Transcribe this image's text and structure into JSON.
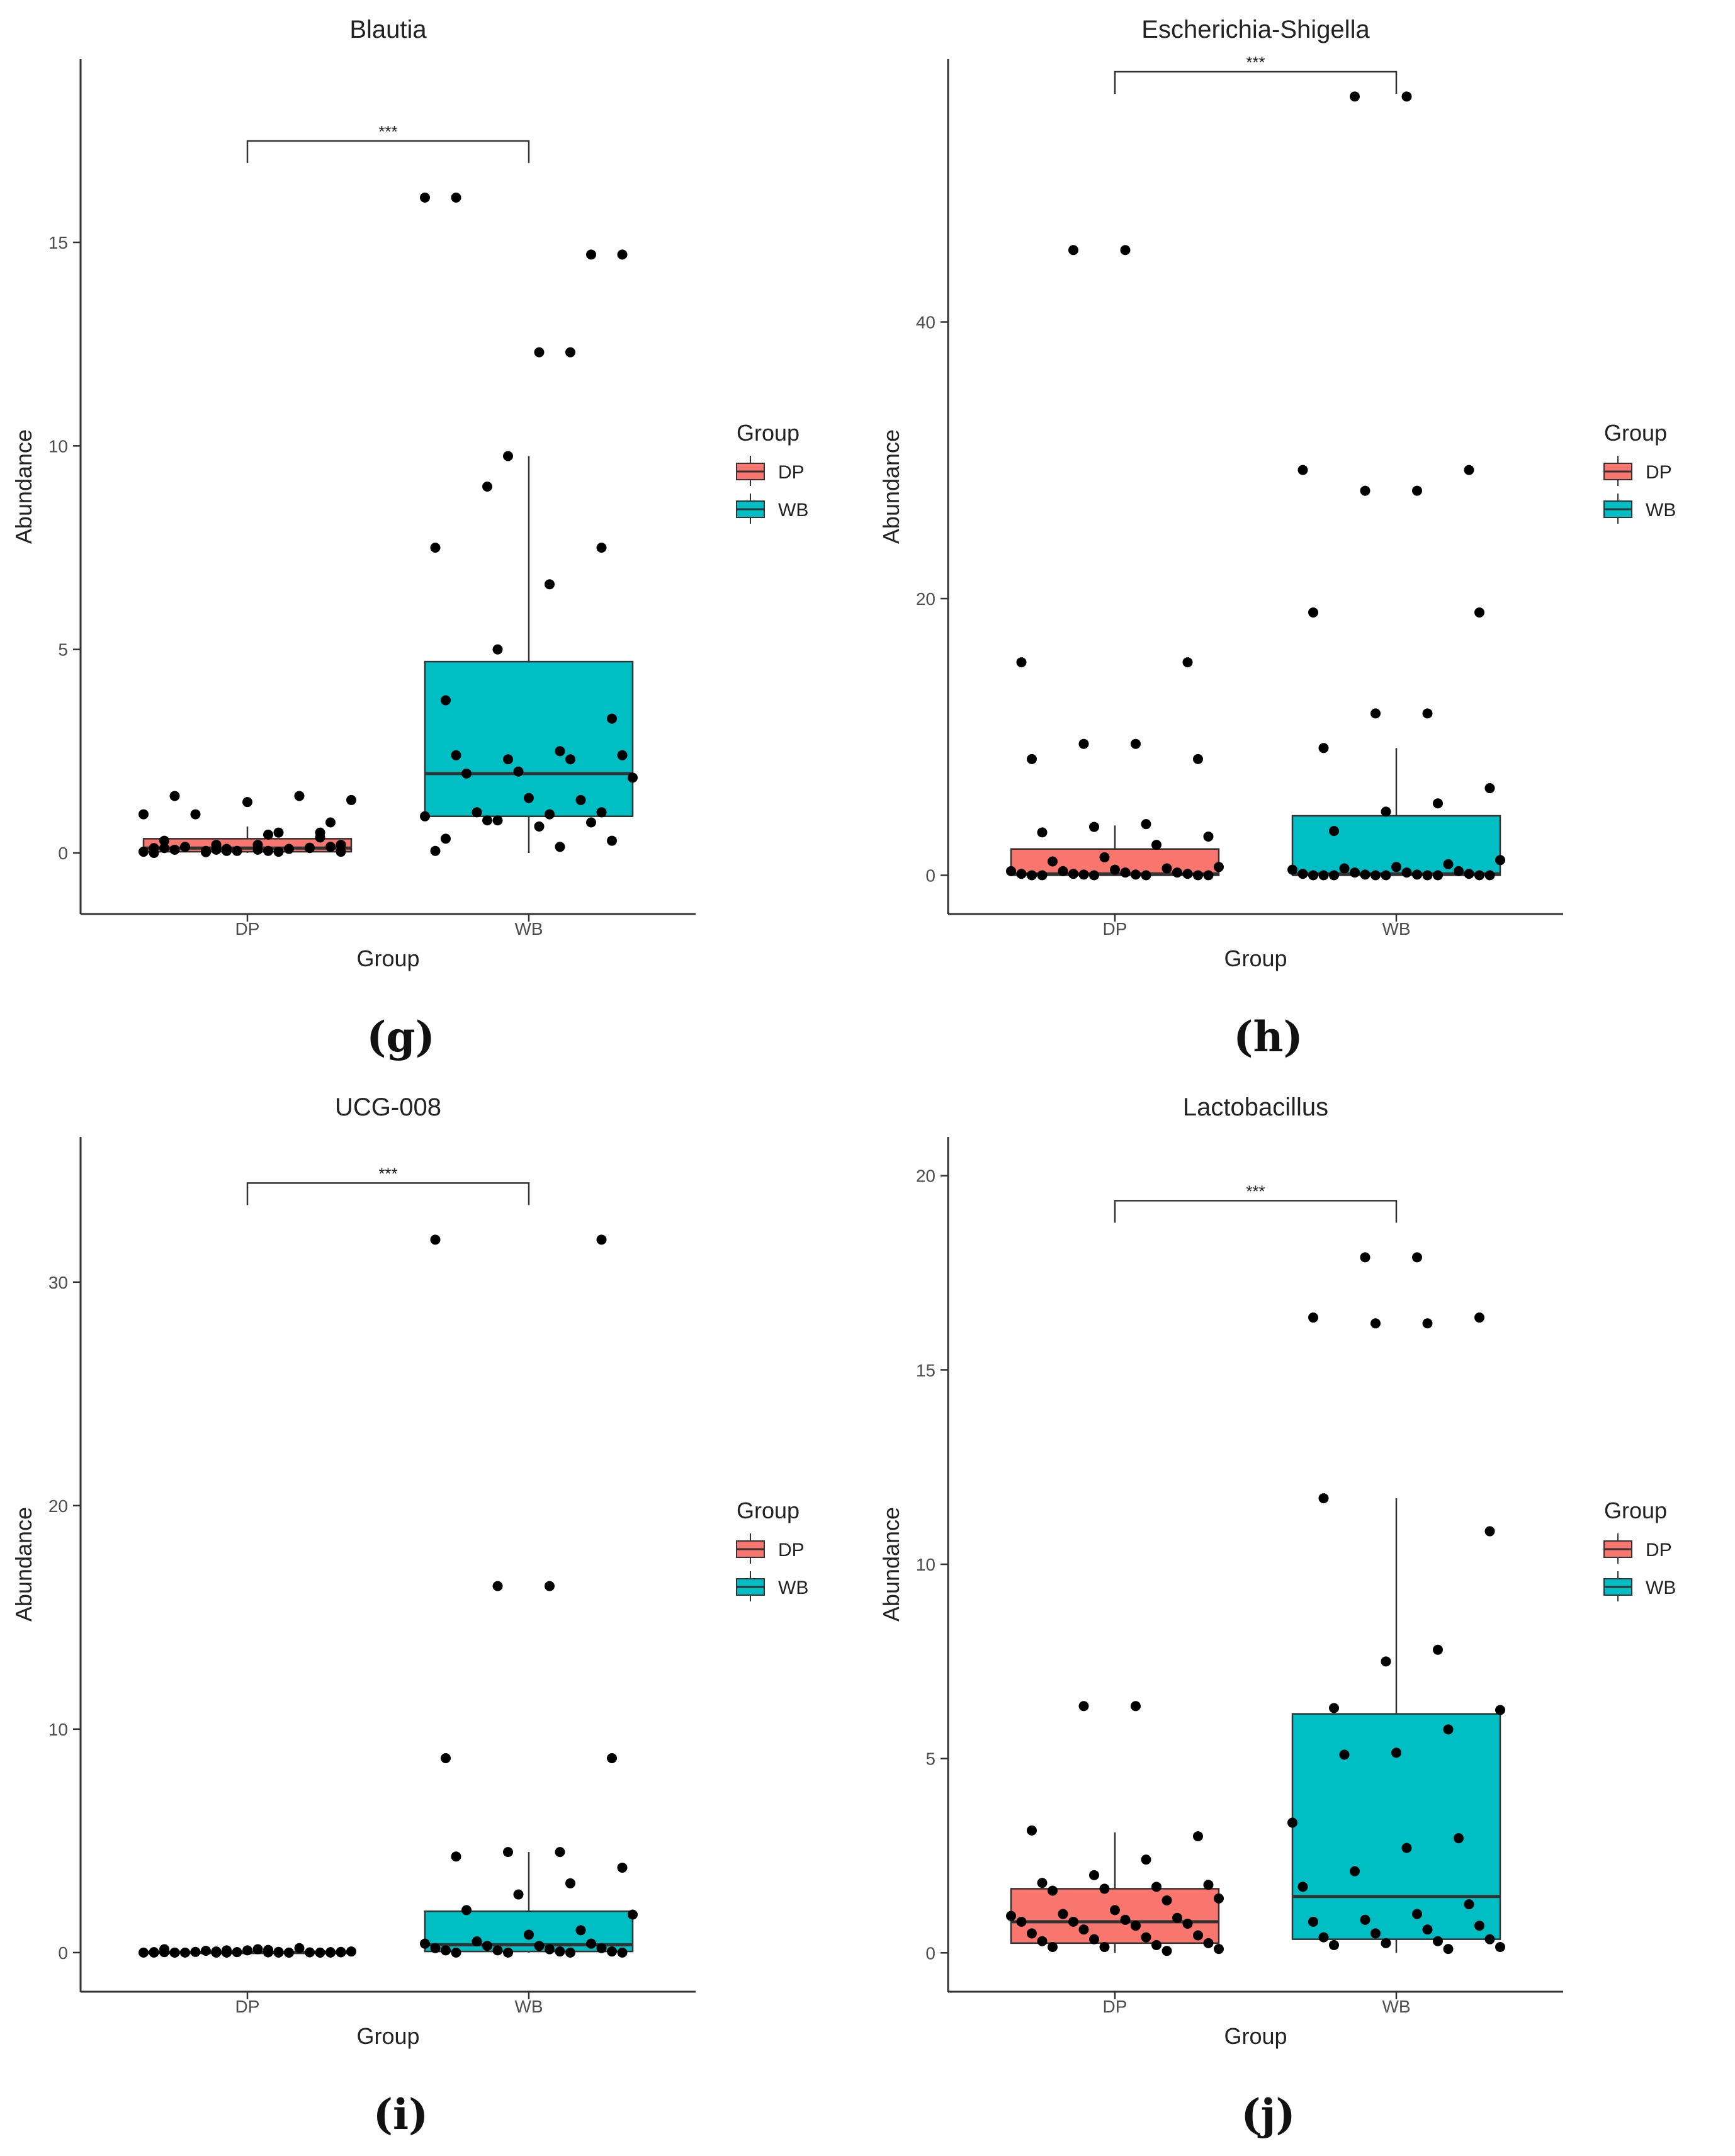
{
  "colors": {
    "DP": "#F8766D",
    "WB": "#00BFC4",
    "point": "#000000",
    "axis": "#333333"
  },
  "legend": {
    "title": "Group",
    "items": [
      "DP",
      "WB"
    ]
  },
  "chart_data": [
    {
      "type": "box",
      "subfigure_label": "(g)",
      "title": "Blautia",
      "xlabel": "Group",
      "ylabel": "Abundance",
      "categories": [
        "DP",
        "WB"
      ],
      "ylim": [
        -1.5,
        19.5
      ],
      "yticks": [
        0,
        5,
        10,
        15
      ],
      "significance": "***",
      "boxes": [
        {
          "group": "DP",
          "lower_whisker": 0,
          "q1": 0.03,
          "median": 0.12,
          "q3": 0.35,
          "upper_whisker": 0.65
        },
        {
          "group": "WB",
          "lower_whisker": 0,
          "q1": 0.9,
          "median": 1.95,
          "q3": 4.7,
          "upper_whisker": 9.75
        }
      ],
      "points": {
        "DP": [
          0.95,
          0.13,
          0.08,
          0.02,
          0.0,
          0.38,
          0.05,
          0.2,
          0.12,
          0.75,
          0.5,
          0.1,
          1.4,
          0.03,
          0.1,
          0.05,
          0.15,
          1.3,
          1.4,
          1.25,
          0.95,
          0.03,
          0.12,
          0.2,
          0.05,
          0.12,
          0.5,
          0.45,
          0.08,
          0.3,
          0.15,
          0.03,
          0.05,
          0.08,
          0.2
        ],
        "WB": [
          16.1,
          14.7,
          12.3,
          9.0,
          7.5,
          7.5,
          6.6,
          5.0,
          3.75,
          3.3,
          2.5,
          2.3,
          2.4,
          2.4,
          2.3,
          2.0,
          1.95,
          1.85,
          1.3,
          1.35,
          1.0,
          0.9,
          0.75,
          0.65,
          0.8,
          0.05,
          1.0,
          0.95,
          0.8,
          0.35,
          0.3,
          0.15,
          9.75,
          16.1,
          14.7,
          12.3
        ]
      }
    },
    {
      "type": "box",
      "subfigure_label": "(h)",
      "title": "Escherichia-Shigella",
      "xlabel": "Group",
      "ylabel": "Abundance",
      "categories": [
        "DP",
        "WB"
      ],
      "ylim": [
        -2.8,
        59
      ],
      "yticks": [
        0,
        20,
        40
      ],
      "significance": "***",
      "boxes": [
        {
          "group": "DP",
          "lower_whisker": 0,
          "q1": 0.0,
          "median": 0.1,
          "q3": 1.9,
          "upper_whisker": 3.6
        },
        {
          "group": "WB",
          "lower_whisker": 0,
          "q1": 0.0,
          "median": 0.1,
          "q3": 4.3,
          "upper_whisker": 9.2
        }
      ],
      "points": {
        "DP": [
          45.2,
          45.2,
          15.4,
          15.4,
          9.5,
          9.5,
          8.4,
          8.4,
          3.7,
          3.5,
          3.1,
          2.8,
          2.2,
          1.3,
          1.0,
          0.6,
          0.5,
          0.4,
          0.3,
          0.3,
          0.2,
          0.2,
          0.1,
          0.1,
          0.1,
          0.05,
          0.05,
          0.0,
          0.0,
          0.0,
          0.0,
          0.0,
          0.0
        ],
        "WB": [
          56.3,
          56.3,
          29.3,
          29.3,
          27.8,
          27.8,
          19.0,
          19.0,
          11.7,
          11.7,
          9.2,
          6.3,
          5.2,
          4.6,
          3.2,
          1.1,
          0.8,
          0.6,
          0.5,
          0.4,
          0.3,
          0.2,
          0.2,
          0.1,
          0.1,
          0.05,
          0.05,
          0.0,
          0.0,
          0.0,
          0.0,
          0.0,
          0.0,
          0.0,
          0.0,
          0.0
        ]
      }
    },
    {
      "type": "box",
      "subfigure_label": "(i)",
      "title": "UCG-008",
      "xlabel": "Group",
      "ylabel": "Abundance",
      "categories": [
        "DP",
        "WB"
      ],
      "ylim": [
        -1.75,
        36.5
      ],
      "yticks": [
        0,
        10,
        20,
        30
      ],
      "significance": "***",
      "boxes": [
        {
          "group": "DP",
          "lower_whisker": 0,
          "q1": 0.0,
          "median": 0.0,
          "q3": 0.05,
          "upper_whisker": 0.2
        },
        {
          "group": "WB",
          "lower_whisker": 0,
          "q1": 0.05,
          "median": 0.35,
          "q3": 1.85,
          "upper_whisker": 4.5
        }
      ],
      "points": {
        "DP": [
          0.02,
          0.0,
          0.01,
          0.0,
          0.02,
          0.0,
          0.03,
          0.0,
          0.0,
          0.01,
          0.0,
          0.02,
          0.0,
          0.05,
          0.2,
          0.1,
          0.03,
          0.0,
          0.01,
          0.15,
          0.08,
          0.0,
          0.0,
          0.12,
          0.05,
          0.15,
          0.02,
          0.0,
          0.1,
          0.0,
          0.03,
          0.0
        ],
        "WB": [
          31.9,
          31.9,
          16.4,
          16.4,
          8.7,
          8.7,
          4.5,
          4.5,
          4.3,
          3.8,
          3.1,
          2.6,
          1.9,
          1.7,
          1.0,
          0.8,
          0.5,
          0.4,
          0.4,
          0.3,
          0.3,
          0.2,
          0.2,
          0.15,
          0.1,
          0.1,
          0.05,
          0.05,
          0.0,
          0.0,
          0.0,
          0.0
        ]
      }
    },
    {
      "type": "box",
      "subfigure_label": "(j)",
      "title": "Lactobacillus",
      "xlabel": "Group",
      "ylabel": "Abundance",
      "categories": [
        "DP",
        "WB"
      ],
      "ylim": [
        -1,
        21
      ],
      "yticks": [
        0,
        5,
        10,
        15,
        20
      ],
      "significance": "***",
      "boxes": [
        {
          "group": "DP",
          "lower_whisker": 0,
          "q1": 0.25,
          "median": 0.8,
          "q3": 1.65,
          "upper_whisker": 3.1
        },
        {
          "group": "WB",
          "lower_whisker": 0,
          "q1": 0.35,
          "median": 1.45,
          "q3": 6.15,
          "upper_whisker": 11.7
        }
      ],
      "points": {
        "DP": [
          6.35,
          6.35,
          3.15,
          3.0,
          2.4,
          2.0,
          1.8,
          1.75,
          1.7,
          1.65,
          1.6,
          1.4,
          1.35,
          1.1,
          1.0,
          0.95,
          0.9,
          0.85,
          0.8,
          0.8,
          0.75,
          0.7,
          0.6,
          0.5,
          0.45,
          0.4,
          0.35,
          0.3,
          0.25,
          0.2,
          0.15,
          0.15,
          0.1,
          0.05
        ],
        "WB": [
          17.9,
          17.9,
          16.35,
          16.35,
          16.2,
          16.2,
          11.7,
          10.85,
          7.8,
          7.5,
          6.3,
          6.25,
          5.75,
          5.15,
          5.1,
          3.35,
          2.95,
          2.7,
          2.1,
          1.7,
          1.25,
          1.0,
          0.85,
          0.8,
          0.7,
          0.6,
          0.5,
          0.4,
          0.35,
          0.3,
          0.25,
          0.2,
          0.15,
          0.1
        ]
      }
    }
  ]
}
